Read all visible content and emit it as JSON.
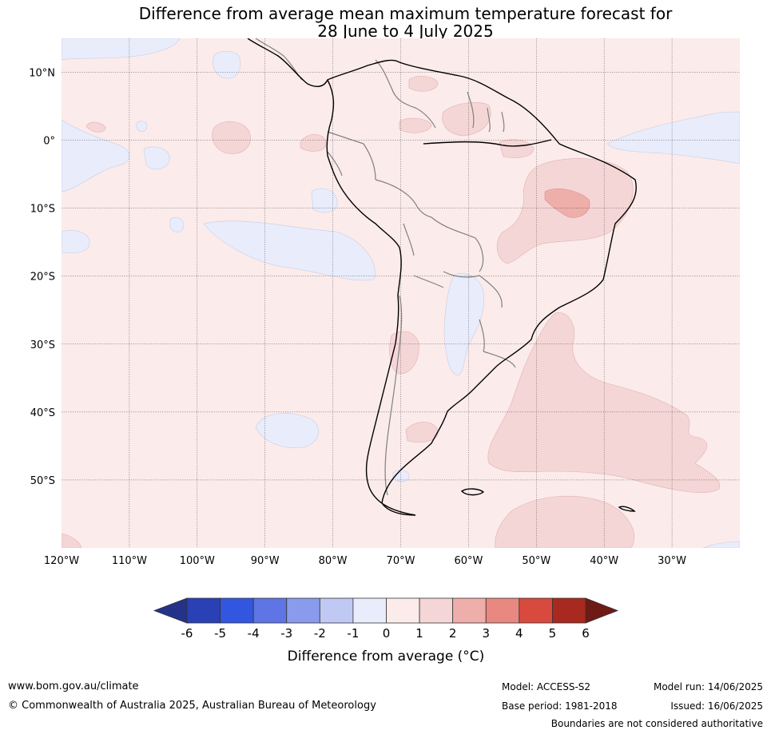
{
  "title": {
    "line1": "Difference from average mean maximum temperature forecast for",
    "line2": "28 June to 4 July 2025"
  },
  "map": {
    "lon_range": [
      -120,
      -20
    ],
    "lat_range": [
      -60,
      15
    ],
    "lat_labels": [
      {
        "lat": 10,
        "label": "10°N"
      },
      {
        "lat": 0,
        "label": "0°"
      },
      {
        "lat": -10,
        "label": "10°S"
      },
      {
        "lat": -20,
        "label": "20°S"
      },
      {
        "lat": -30,
        "label": "30°S"
      },
      {
        "lat": -40,
        "label": "40°S"
      },
      {
        "lat": -50,
        "label": "50°S"
      }
    ],
    "lon_labels": [
      {
        "lon": -120,
        "label": "120°W"
      },
      {
        "lon": -110,
        "label": "110°W"
      },
      {
        "lon": -100,
        "label": "100°W"
      },
      {
        "lon": -90,
        "label": "90°W"
      },
      {
        "lon": -80,
        "label": "80°W"
      },
      {
        "lon": -70,
        "label": "70°W"
      },
      {
        "lon": -60,
        "label": "60°W"
      },
      {
        "lon": -50,
        "label": "50°W"
      },
      {
        "lon": -40,
        "label": "40°W"
      },
      {
        "lon": -30,
        "label": "30°W"
      }
    ],
    "background_anomaly_color": "#fbebeb",
    "colors": {
      "warm_1_2": "#f5d6d6",
      "warm_2_3": "#eeafaa",
      "cool_0_-1": "#e9ecfb",
      "coastline": "#000000",
      "border": "#808080"
    }
  },
  "colorbar": {
    "ticks": [
      "-6",
      "-5",
      "-4",
      "-3",
      "-2",
      "-1",
      "0",
      "1",
      "2",
      "3",
      "4",
      "5",
      "6"
    ],
    "colors": [
      "#24328a",
      "#2a40b5",
      "#3356e0",
      "#5f75e5",
      "#8a9aec",
      "#c0c8f4",
      "#e9ecfb",
      "#fbebeb",
      "#f5d6d6",
      "#eeafaa",
      "#e88880",
      "#d94a3e",
      "#a8291f",
      "#6e1a15"
    ],
    "label": "Difference from average (°C)"
  },
  "footer": {
    "website": "www.bom.gov.au/climate",
    "copyright": "© Commonwealth of Australia 2025, Australian Bureau of Meteorology",
    "model": "Model: ACCESS-S2",
    "base_period": "Base period: 1981-2018",
    "model_run": "Model run: 14/06/2025",
    "issued": "Issued: 16/06/2025",
    "disclaimer": "Boundaries are not considered authoritative"
  }
}
